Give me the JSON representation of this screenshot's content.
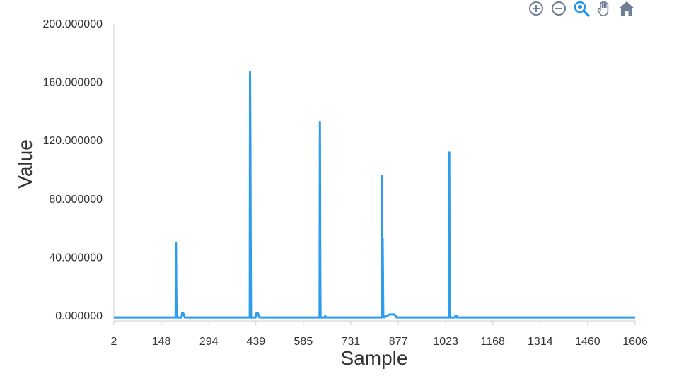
{
  "toolbar": {
    "icons": [
      "zoom-in-icon",
      "zoom-out-icon",
      "selection-zoom-icon",
      "pan-icon",
      "home-icon"
    ],
    "active_icon": "selection-zoom-icon",
    "icon_color": "#6e7f94",
    "active_color": "#2196f3"
  },
  "chart_data": {
    "type": "line",
    "xlabel": "Sample",
    "ylabel": "Value",
    "xlim": [
      2,
      1606
    ],
    "ylim": [
      0,
      200
    ],
    "x_ticks": [
      "2",
      "148",
      "294",
      "439",
      "585",
      "731",
      "877",
      "1023",
      "1168",
      "1314",
      "1460",
      "1606"
    ],
    "y_ticks": [
      "0.000000",
      "40.000000",
      "80.000000",
      "120.000000",
      "160.000000",
      "200.000000"
    ],
    "grid": false,
    "legend": "none",
    "color": "#2d9cef",
    "series": [
      {
        "x": [
          2,
          192,
          193,
          194,
          195,
          196,
          210,
          212,
          215,
          220,
          226,
          420,
          421,
          422,
          423,
          424,
          425,
          438,
          441,
          445,
          450,
          458,
          635,
          636,
          637,
          638,
          639,
          650,
          652,
          655,
          826,
          827,
          828,
          829,
          830,
          831,
          832,
          833,
          834,
          850,
          855,
          865,
          870,
          871,
          872,
          1033,
          1034,
          1035,
          1036,
          1037,
          1052,
          1053,
          1057,
          1058,
          1606
        ],
        "y": [
          -1,
          -1,
          50,
          20,
          -1,
          -1,
          -1,
          2,
          2,
          -1,
          -1,
          -1,
          167,
          120,
          55,
          -1,
          -1,
          -1,
          2,
          2,
          -1,
          -1,
          -1,
          133,
          35,
          -1,
          -1,
          -1,
          0,
          -1,
          -1,
          96,
          50,
          53,
          30,
          0,
          0,
          -1,
          -1,
          1,
          1,
          1,
          0,
          0,
          -1,
          -1,
          112,
          24,
          -1,
          -1,
          -1,
          0,
          0,
          -1,
          -1
        ]
      }
    ]
  }
}
